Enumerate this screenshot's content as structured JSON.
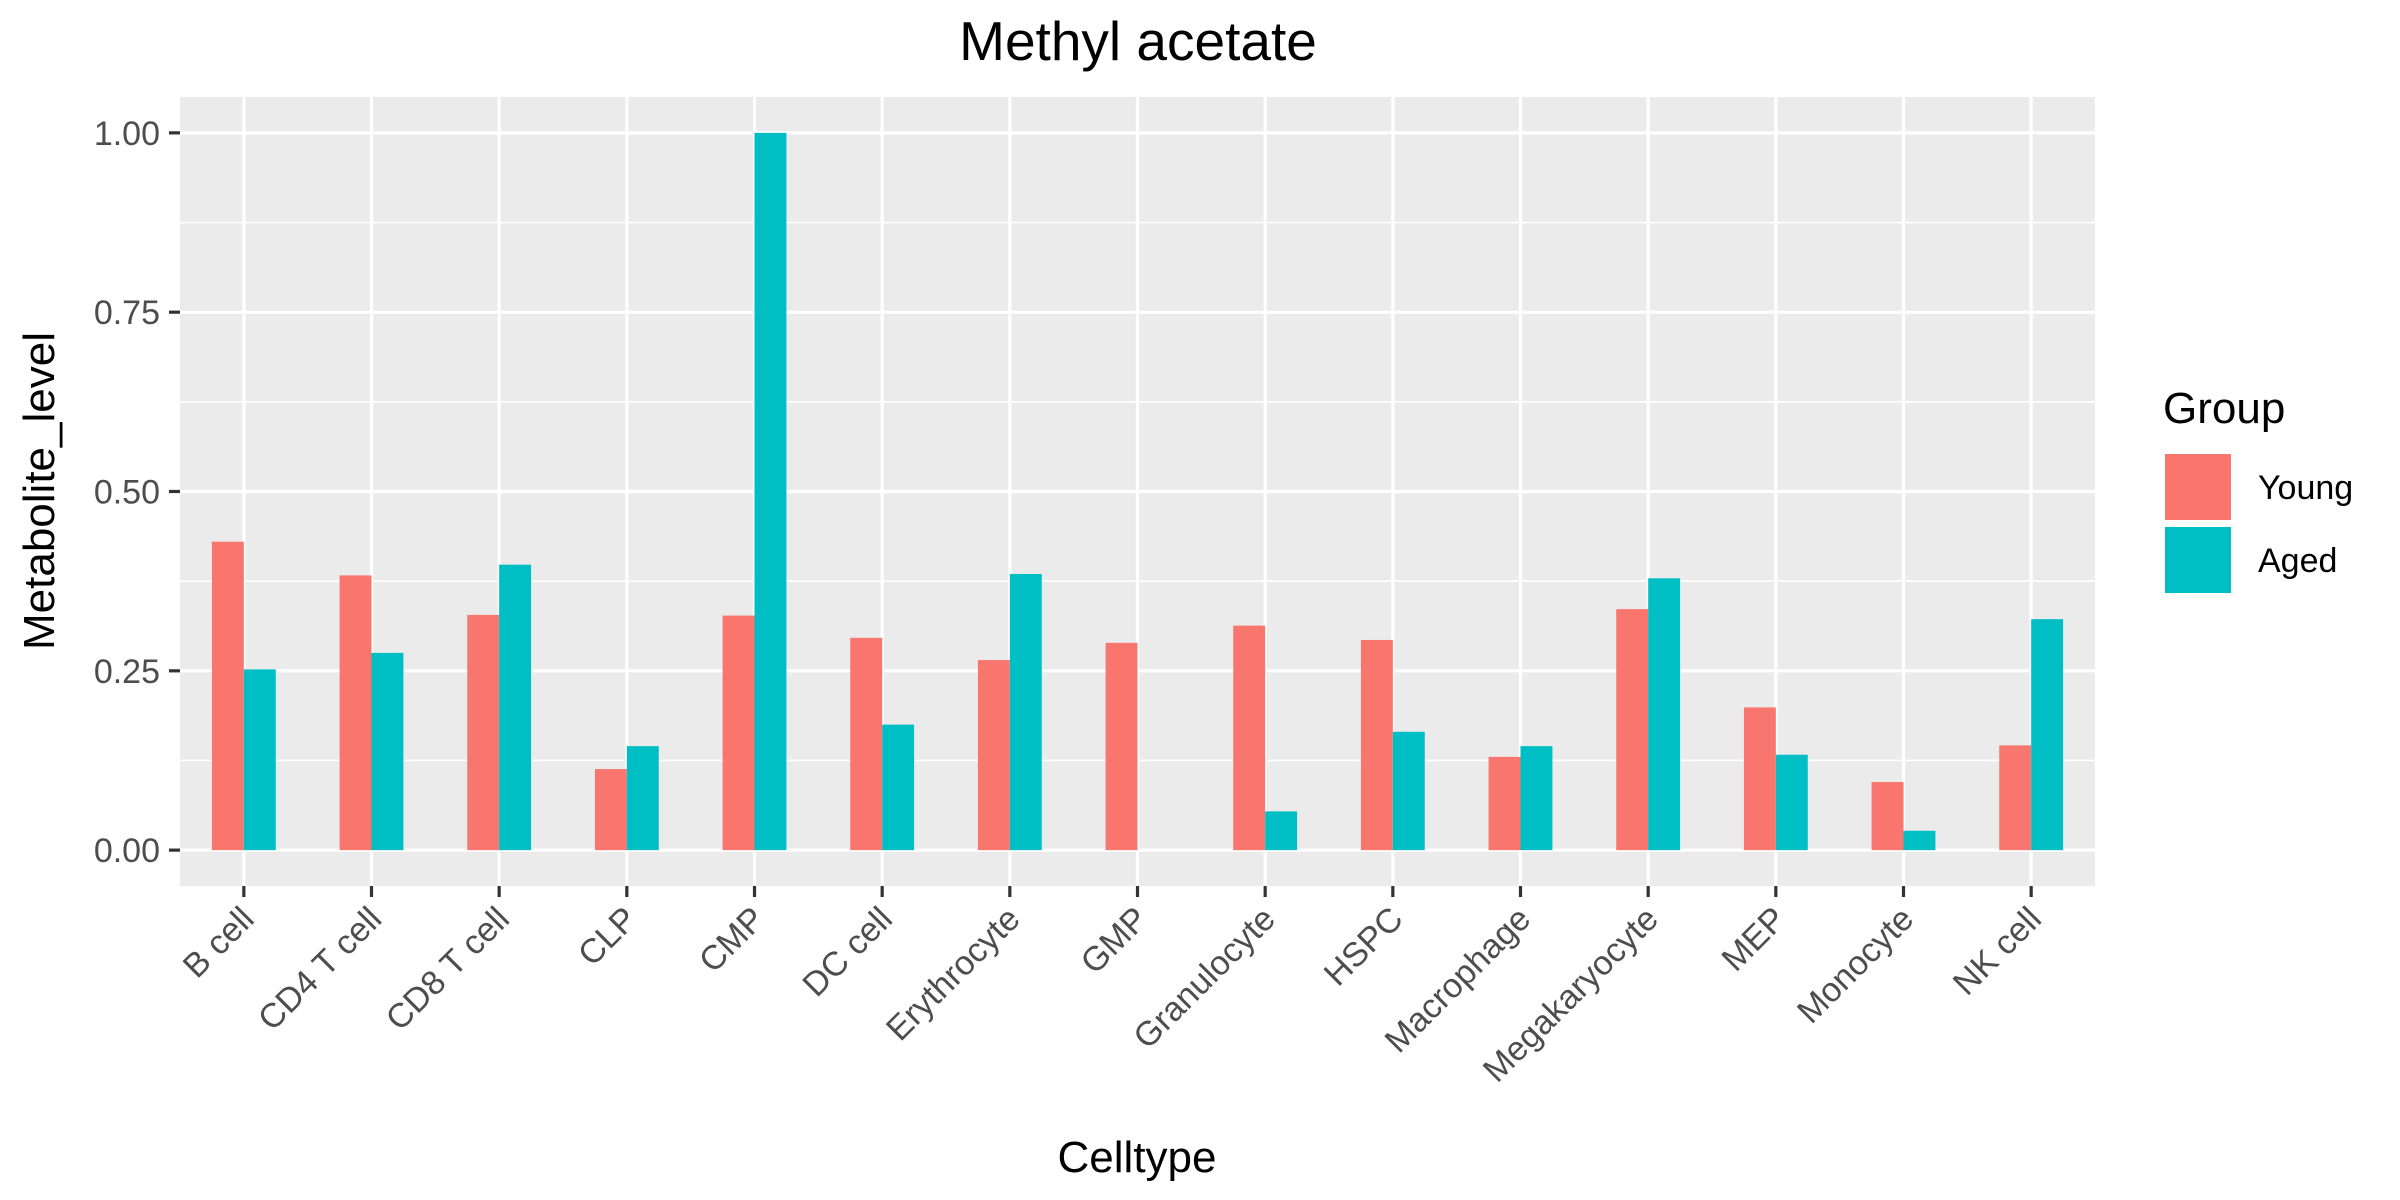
{
  "chart_data": {
    "type": "bar",
    "title": "Methyl acetate",
    "xlabel": "Celltype",
    "ylabel": "Metabolite_level",
    "ylim": [
      -0.05,
      1.05
    ],
    "yticks": [
      0.0,
      0.25,
      0.5,
      0.75,
      1.0
    ],
    "ytick_labels": [
      "0.00",
      "0.25",
      "0.50",
      "0.75",
      "1.00"
    ],
    "categories": [
      "B cell",
      "CD4 T cell",
      "CD8 T cell",
      "CLP",
      "CMP",
      "DC cell",
      "Erythrocyte",
      "GMP",
      "Granulocyte",
      "HSPC",
      "Macrophage",
      "Megakaryocyte",
      "MEP",
      "Monocyte",
      "NK cell"
    ],
    "series": [
      {
        "name": "Young",
        "color": "#F8766D",
        "values": [
          0.43,
          0.383,
          0.328,
          0.113,
          0.327,
          0.296,
          0.265,
          0.289,
          0.313,
          0.293,
          0.13,
          0.336,
          0.199,
          0.095,
          0.146
        ]
      },
      {
        "name": "Aged",
        "color": "#00BFC4",
        "values": [
          0.252,
          0.275,
          0.398,
          0.145,
          1.0,
          0.175,
          0.385,
          0.0,
          0.054,
          0.165,
          0.145,
          0.379,
          0.133,
          0.027,
          0.322
        ]
      }
    ],
    "legend": {
      "title": "Group",
      "position": "right"
    },
    "grid": true,
    "panel_background": "#EBEBEB"
  }
}
